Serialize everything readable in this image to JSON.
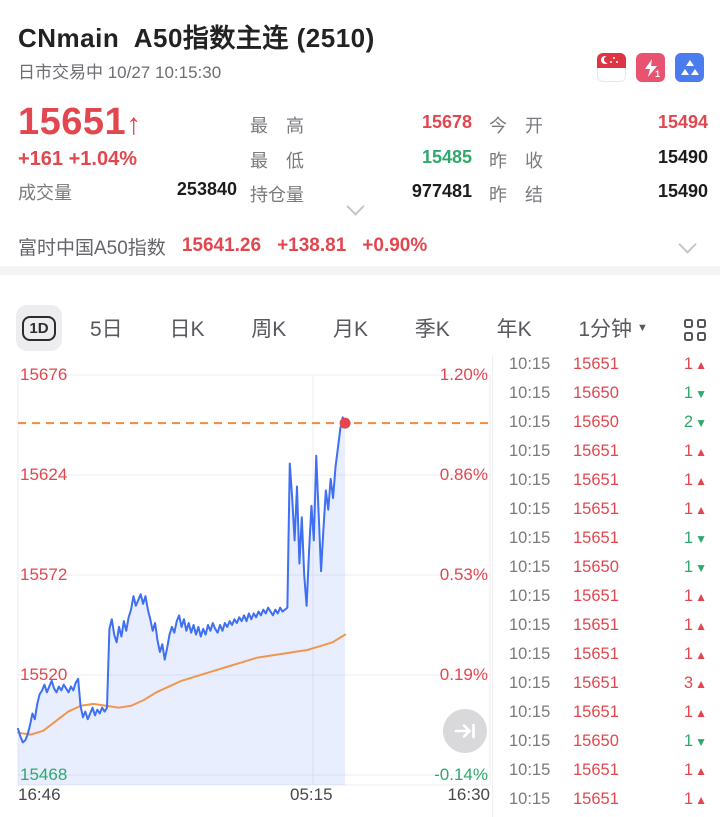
{
  "colors": {
    "red": "#e2474f",
    "green": "#2fa86e",
    "dark": "#1c1c1e",
    "gray": "#7a7a7f",
    "blue_line": "#3f6ff2",
    "fill_blue": "rgba(94,134,245,0.14)",
    "avg_orange": "#f2954d",
    "dashed_orange": "#f08a3e",
    "level_icon_bg": "#e85371",
    "depth_icon_bg": "#4a7cf0",
    "flag_red": "#e03445"
  },
  "header": {
    "title": "CNmain  A50指数主连 (2510)",
    "status_line": "日市交易中 10/27 10:15:30",
    "icons": [
      "singapore-flag",
      "level1-lightning",
      "depth-pyramid"
    ]
  },
  "quote": {
    "price": "15651",
    "direction_arrow": "↑",
    "change": "+161 +1.04%",
    "volume_label": "成交量",
    "volume": "253840",
    "mid": [
      {
        "label": "最　高",
        "value": "15678"
      },
      {
        "label": "最　低",
        "value": "15485"
      },
      {
        "label": "持仓量",
        "value": "977481"
      }
    ],
    "right": [
      {
        "label": "今　开",
        "value": "15494"
      },
      {
        "label": "昨　收",
        "value": "15490"
      },
      {
        "label": "昨　结",
        "value": "15490"
      }
    ]
  },
  "index_bar": {
    "name": "富时中国A50指数",
    "value": "15641.26",
    "change": "+138.81",
    "pct": "+0.90%"
  },
  "tabs": {
    "items": [
      "1D",
      "5日",
      "日K",
      "周K",
      "月K",
      "季K",
      "年K"
    ],
    "dropdown_label": "1分钟"
  },
  "chart_data": {
    "type": "line",
    "title": "A50指数主连 1D 分时图",
    "ylim": [
      15468,
      15676
    ],
    "grid_values": [
      15676,
      15624,
      15572,
      15520,
      15468
    ],
    "y_left_labels": [
      "15676",
      "15624",
      "15572",
      "15520",
      "15468"
    ],
    "y_right_labels": [
      "1.20%",
      "0.86%",
      "0.53%",
      "0.19%",
      "-0.14%"
    ],
    "x_labels": [
      "16:46",
      "05:15",
      "16:30"
    ],
    "x_grid_fraction": 0.625,
    "data_end_fraction": 0.693,
    "current_price": 15651,
    "prev_settle": 15490,
    "legend_position": "none",
    "series": [
      {
        "name": "price",
        "values": [
          15492,
          15488,
          15485,
          15486,
          15489,
          15494,
          15500,
          15497,
          15505,
          15510,
          15512,
          15515,
          15511,
          15514,
          15517,
          15513,
          15511,
          15514,
          15512,
          15515,
          15513,
          15511,
          15514,
          15512,
          15516,
          15518,
          15504,
          15498,
          15501,
          15497,
          15500,
          15503,
          15499,
          15502,
          15500,
          15503,
          15501,
          15503,
          15544,
          15549,
          15541,
          15537,
          15545,
          15540,
          15548,
          15543,
          15550,
          15554,
          15561,
          15556,
          15559,
          15562,
          15557,
          15561,
          15554,
          15549,
          15543,
          15547,
          15538,
          15532,
          15536,
          15528,
          15534,
          15541,
          15545,
          15542,
          15548,
          15551,
          15545,
          15549,
          15543,
          15547,
          15542,
          15546,
          15541,
          15545,
          15540,
          15544,
          15541,
          15546,
          15543,
          15547,
          15544,
          15542,
          15546,
          15543,
          15547,
          15545,
          15548,
          15546,
          15549,
          15547,
          15550,
          15548,
          15551,
          15548,
          15552,
          15549,
          15552,
          15550,
          15553,
          15551,
          15554,
          15552,
          15555,
          15553,
          15551,
          15554,
          15552,
          15555,
          15553,
          15554,
          15555,
          15630,
          15612,
          15590,
          15618,
          15578,
          15602,
          15572,
          15556,
          15584,
          15608,
          15590,
          15634,
          15604,
          15574,
          15596,
          15616,
          15606,
          15622,
          15612,
          15628,
          15638,
          15648,
          15654,
          15651
        ]
      },
      {
        "name": "average",
        "values": [
          15490,
          15489,
          15491,
          15496,
          15501,
          15504,
          15505,
          15504,
          15503,
          15504,
          15507,
          15511,
          15514,
          15517,
          15519,
          15521,
          15523,
          15525,
          15527,
          15529,
          15530,
          15531,
          15532,
          15533,
          15535,
          15537,
          15541
        ]
      }
    ]
  },
  "ticks": [
    {
      "time": "10:15",
      "price": "15651",
      "vol": "1",
      "dir": "up"
    },
    {
      "time": "10:15",
      "price": "15650",
      "vol": "1",
      "dir": "down"
    },
    {
      "time": "10:15",
      "price": "15650",
      "vol": "2",
      "dir": "down"
    },
    {
      "time": "10:15",
      "price": "15651",
      "vol": "1",
      "dir": "up"
    },
    {
      "time": "10:15",
      "price": "15651",
      "vol": "1",
      "dir": "up"
    },
    {
      "time": "10:15",
      "price": "15651",
      "vol": "1",
      "dir": "up"
    },
    {
      "time": "10:15",
      "price": "15651",
      "vol": "1",
      "dir": "down"
    },
    {
      "time": "10:15",
      "price": "15650",
      "vol": "1",
      "dir": "down"
    },
    {
      "time": "10:15",
      "price": "15651",
      "vol": "1",
      "dir": "up"
    },
    {
      "time": "10:15",
      "price": "15651",
      "vol": "1",
      "dir": "up"
    },
    {
      "time": "10:15",
      "price": "15651",
      "vol": "1",
      "dir": "up"
    },
    {
      "time": "10:15",
      "price": "15651",
      "vol": "3",
      "dir": "up"
    },
    {
      "time": "10:15",
      "price": "15651",
      "vol": "1",
      "dir": "up"
    },
    {
      "time": "10:15",
      "price": "15650",
      "vol": "1",
      "dir": "down"
    },
    {
      "time": "10:15",
      "price": "15651",
      "vol": "1",
      "dir": "up"
    },
    {
      "time": "10:15",
      "price": "15651",
      "vol": "1",
      "dir": "up"
    }
  ],
  "tick_arrows": {
    "up": "▲",
    "down": "▼"
  }
}
